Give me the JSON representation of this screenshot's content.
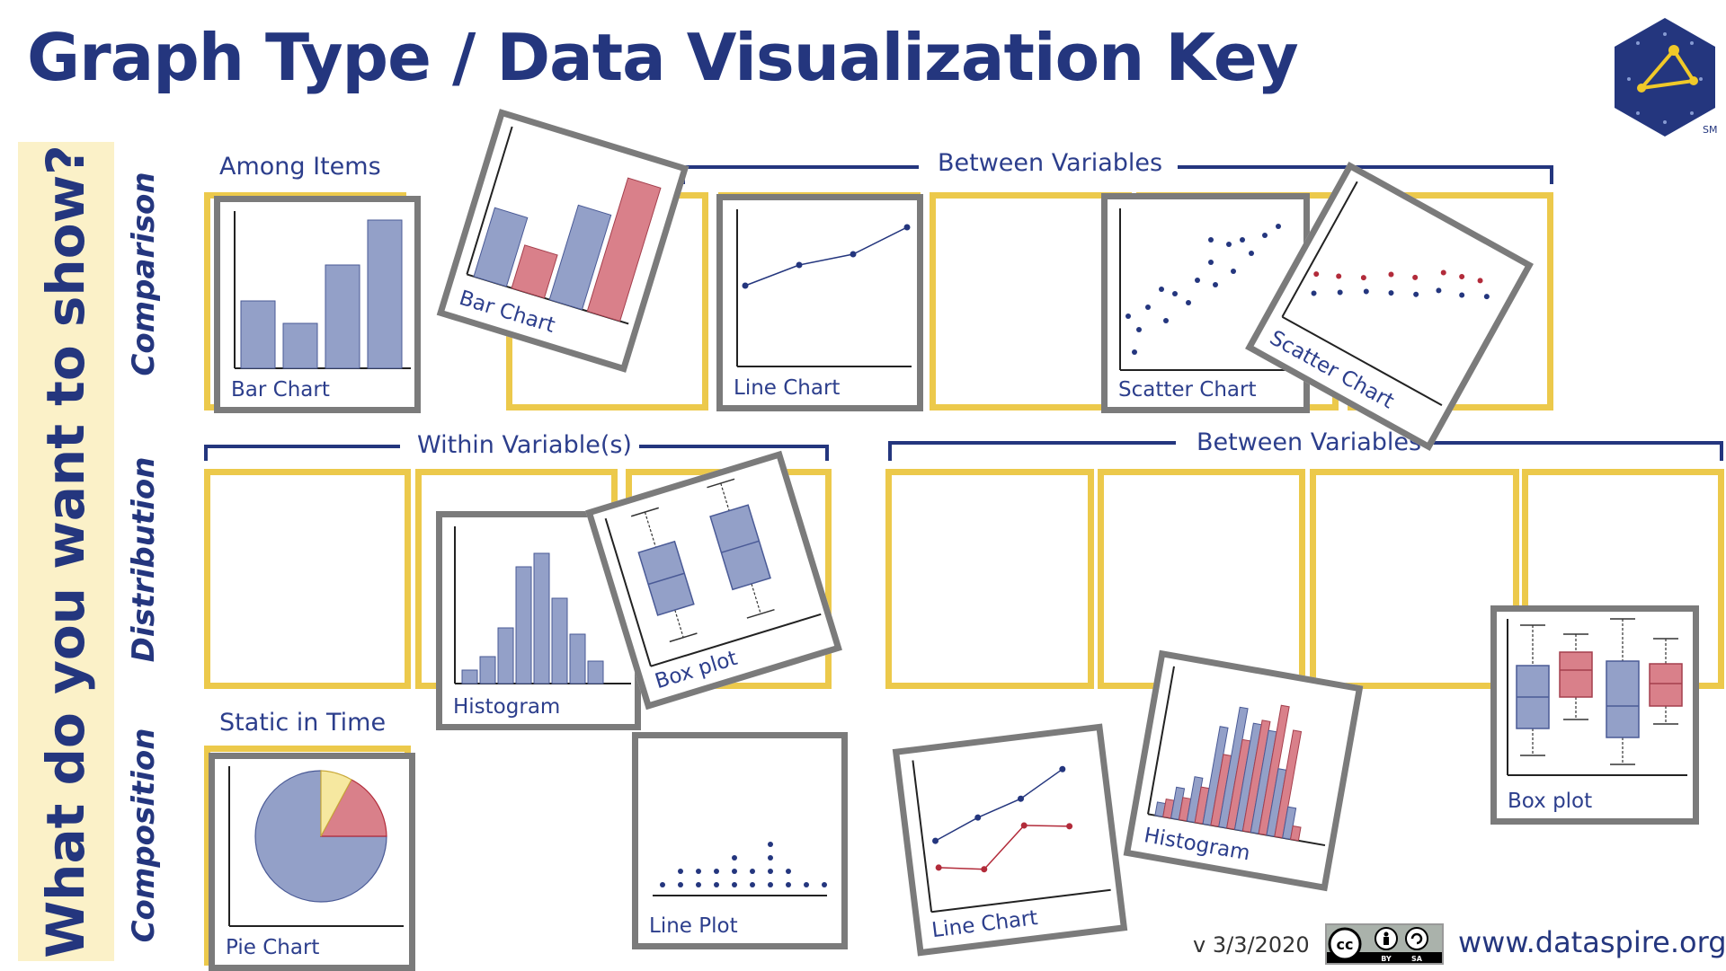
{
  "title": "Graph Type / Data Visualization Key",
  "sidebar_question": "What do you want to show?",
  "rows": {
    "comparison": "Comparison",
    "distribution": "Distribution",
    "composition": "Composition"
  },
  "group_labels": {
    "among_items": "Among Items",
    "between_variables_top": "Between Variables",
    "within_variables": "Within Variable(s)",
    "between_variables_mid": "Between Variables",
    "static_in_time": "Static in Time"
  },
  "cards": {
    "bar_chart_1": "Bar Chart",
    "bar_chart_2": "Bar Chart",
    "line_chart_1": "Line Chart",
    "scatter_chart_1": "Scatter Chart",
    "scatter_chart_2": "Scatter Chart",
    "histogram_1": "Histogram",
    "box_plot_1": "Box plot",
    "pie_chart": "Pie Chart",
    "line_plot": "Line Plot",
    "line_chart_2": "Line Chart",
    "histogram_2": "Histogram",
    "box_plot_2": "Box plot"
  },
  "footer": {
    "version": "v 3/3/2020",
    "license_icon": "creative-commons-by-sa-icon",
    "license_text_by": "BY",
    "license_text_sa": "SA",
    "url": "www.dataspire.org"
  },
  "logo": {
    "icon": "dataspire-hexagon-logo-icon",
    "mark": "SM"
  },
  "colors": {
    "navy": "#24367e",
    "slot_yellow": "#ecc94b",
    "card_gray": "#7b7b7b",
    "blue_fill": "#93a0c8",
    "red_fill": "#d9808a",
    "sidebar_bg": "#fbf1c8"
  }
}
